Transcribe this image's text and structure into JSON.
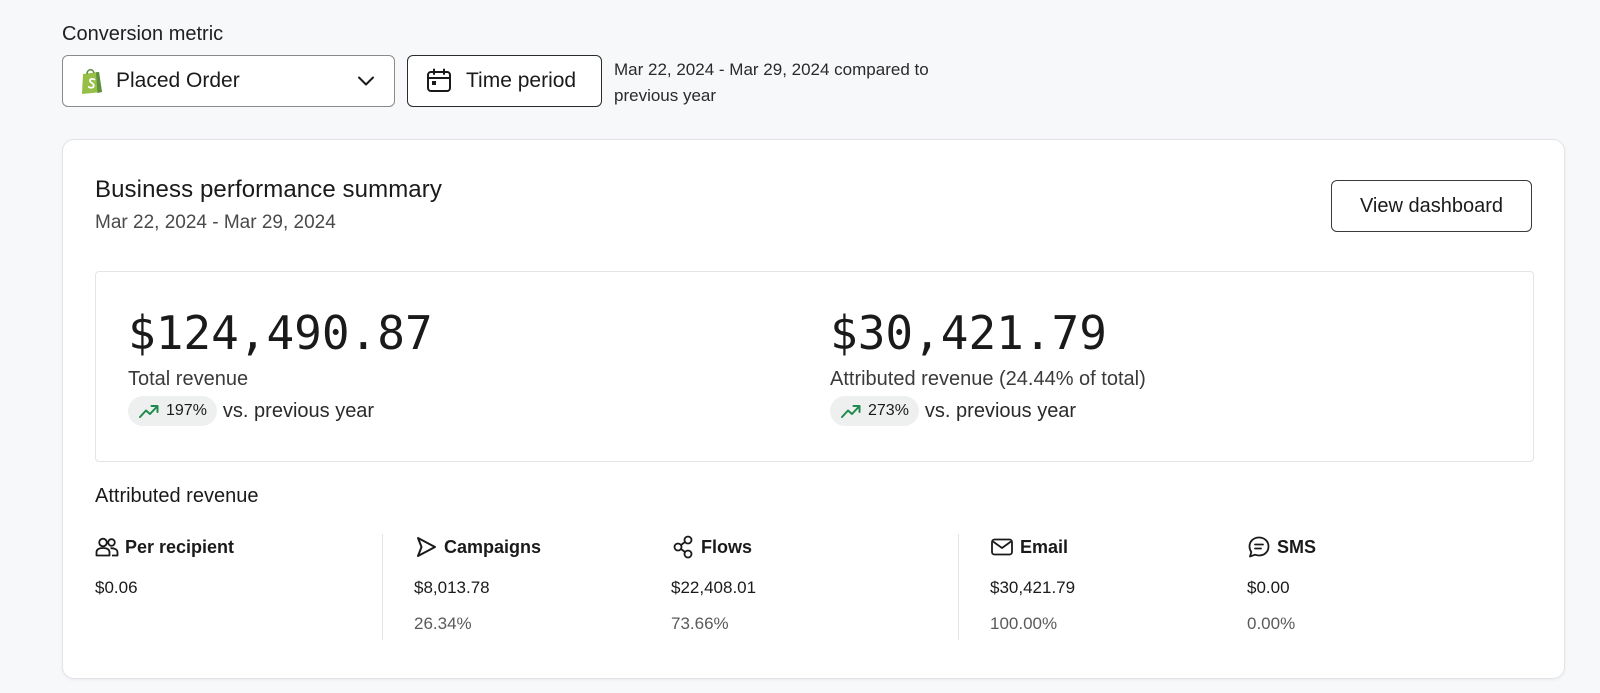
{
  "filters": {
    "conversion_metric_label": "Conversion metric",
    "metric_select": {
      "value": "Placed Order",
      "icon": "shopify-bag-icon"
    },
    "time_period_button": "Time period",
    "comparison_text": "Mar 22, 2024 - Mar 29, 2024 compared to previous year"
  },
  "summary": {
    "title": "Business performance summary",
    "date_range": "Mar 22, 2024 - Mar 29, 2024",
    "view_dashboard_label": "View dashboard",
    "stats": [
      {
        "amount": "$124,490.87",
        "label": "Total revenue",
        "change": "197%",
        "comparison": "vs. previous year"
      },
      {
        "amount": "$30,421.79",
        "label": "Attributed revenue (24.44% of total)",
        "change": "273%",
        "comparison": "vs. previous year"
      }
    ],
    "attributed_title": "Attributed revenue",
    "breakdown": [
      {
        "label": "Per recipient",
        "icon": "users-icon",
        "value": "$0.06",
        "percent": ""
      },
      {
        "label": "Campaigns",
        "icon": "send-icon",
        "value": "$8,013.78",
        "percent": "26.34%"
      },
      {
        "label": "Flows",
        "icon": "flows-icon",
        "value": "$22,408.01",
        "percent": "73.66%"
      },
      {
        "label": "Email",
        "icon": "mail-icon",
        "value": "$30,421.79",
        "percent": "100.00%"
      },
      {
        "label": "SMS",
        "icon": "sms-icon",
        "value": "$0.00",
        "percent": "0.00%"
      }
    ]
  },
  "colors": {
    "shopify_green": "#95bf47",
    "trend_green": "#1e8a4c",
    "background": "#f7f8fa"
  }
}
